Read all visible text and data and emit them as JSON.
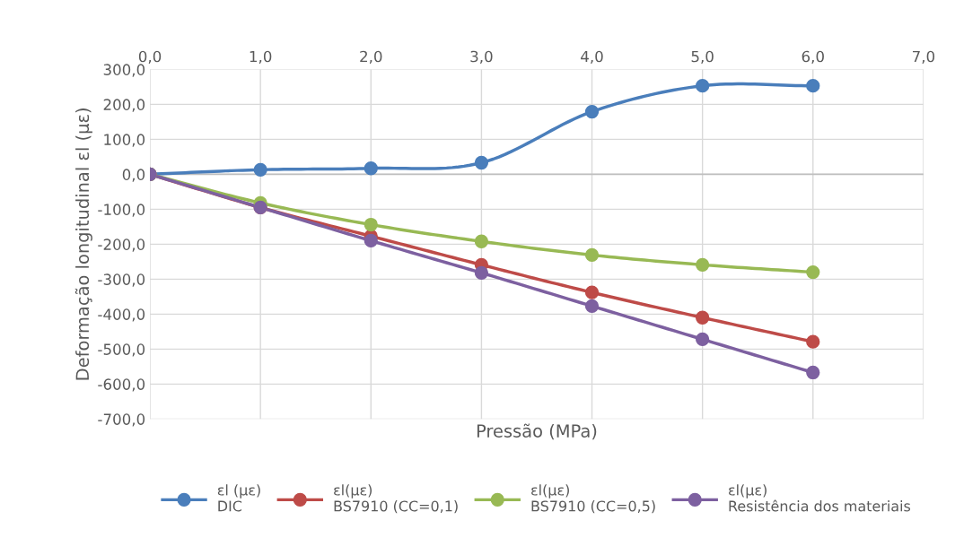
{
  "chart_data": {
    "type": "line",
    "xlabel": "Pressão (MPa)",
    "ylabel": "Deformação longitudinal εl (με)",
    "x": [
      0,
      1,
      2,
      3,
      4,
      5,
      6
    ],
    "series": [
      {
        "name": "εl (με)\nDIC",
        "color": "#4a7ebb",
        "values": [
          0,
          13,
          17,
          33,
          179,
          253,
          253
        ]
      },
      {
        "name": "εl(με)\nBS7910 (CC=0,1)",
        "color": "#be4b48",
        "values": [
          0,
          -95,
          -177,
          -259,
          -338,
          -410,
          -479
        ]
      },
      {
        "name": "εl(με)\nBS7910 (CC=0,5)",
        "color": "#98b954",
        "values": [
          0,
          -82,
          -144,
          -192,
          -231,
          -259,
          -280
        ]
      },
      {
        "name": "εl(με)\nResistência dos materiais",
        "color": "#7d60a0",
        "values": [
          0,
          -95,
          -190,
          -282,
          -377,
          -472,
          -567
        ]
      }
    ],
    "xlim": [
      0,
      7
    ],
    "ylim": [
      -700,
      300
    ],
    "xticks": [
      {
        "value": 0,
        "label": "0,0"
      },
      {
        "value": 1,
        "label": "1,0"
      },
      {
        "value": 2,
        "label": "2,0"
      },
      {
        "value": 3,
        "label": "3,0"
      },
      {
        "value": 4,
        "label": "4,0"
      },
      {
        "value": 5,
        "label": "5,0"
      },
      {
        "value": 6,
        "label": "6,0"
      },
      {
        "value": 7,
        "label": "7,0"
      }
    ],
    "yticks": [
      {
        "value": 300,
        "label": "300,0"
      },
      {
        "value": 200,
        "label": "200,0"
      },
      {
        "value": 100,
        "label": "100,0"
      },
      {
        "value": 0,
        "label": "0,0"
      },
      {
        "value": -100,
        "label": "-100,0"
      },
      {
        "value": -200,
        "label": "-200,0"
      },
      {
        "value": -300,
        "label": "-300,0"
      },
      {
        "value": -400,
        "label": "-400,0"
      },
      {
        "value": -500,
        "label": "-500,0"
      },
      {
        "value": -600,
        "label": "-600,0"
      },
      {
        "value": -700,
        "label": "-700,0"
      }
    ],
    "grid": true,
    "legend": "bottom",
    "marker": "circle",
    "line_style": "solid"
  }
}
